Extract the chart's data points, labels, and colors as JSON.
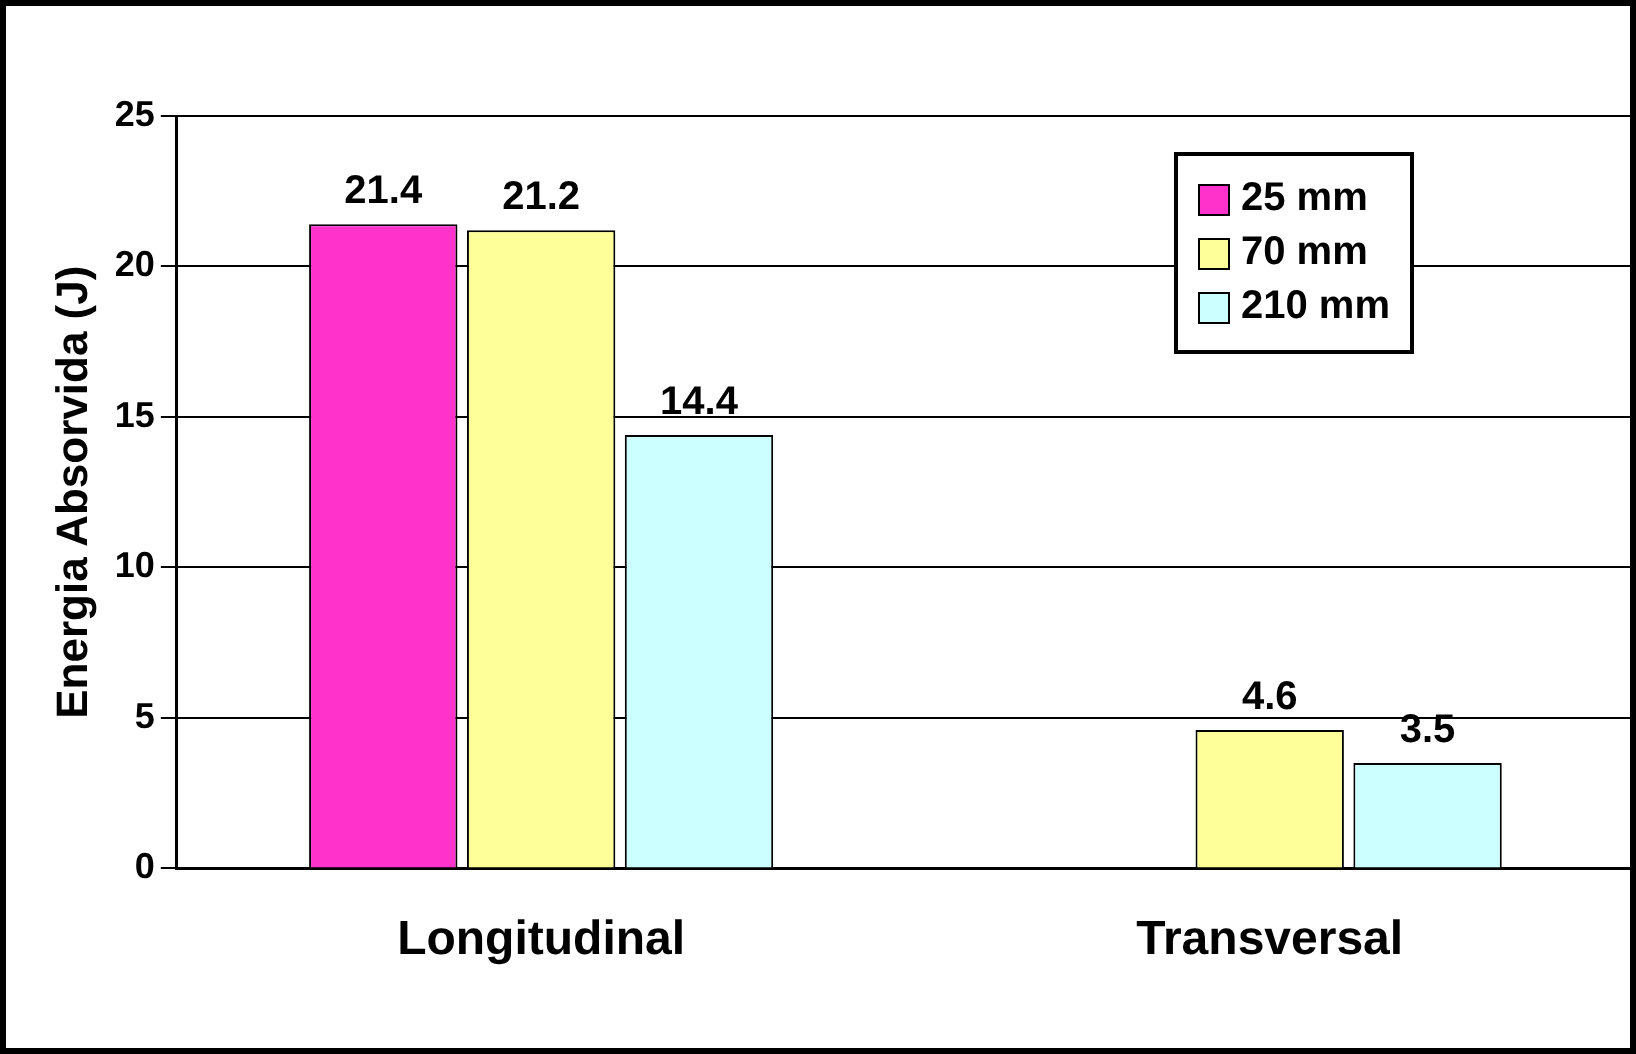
{
  "chart_data": {
    "type": "bar",
    "ylabel": "Energia Absorvida (J)",
    "categories": [
      "Longitudinal",
      "Transversal"
    ],
    "series": [
      {
        "name": "25 mm",
        "color": "#ff33cc",
        "values": [
          21.4,
          null
        ]
      },
      {
        "name": "70 mm",
        "color": "#ffff99",
        "values": [
          21.2,
          4.6
        ]
      },
      {
        "name": "210 mm",
        "color": "#ccffff",
        "values": [
          14.4,
          3.5
        ]
      }
    ],
    "ylim": [
      0,
      25
    ],
    "yticks": [
      0,
      5,
      10,
      15,
      20,
      25
    ],
    "grid": "y",
    "legend": "top right",
    "data_labels": true
  }
}
